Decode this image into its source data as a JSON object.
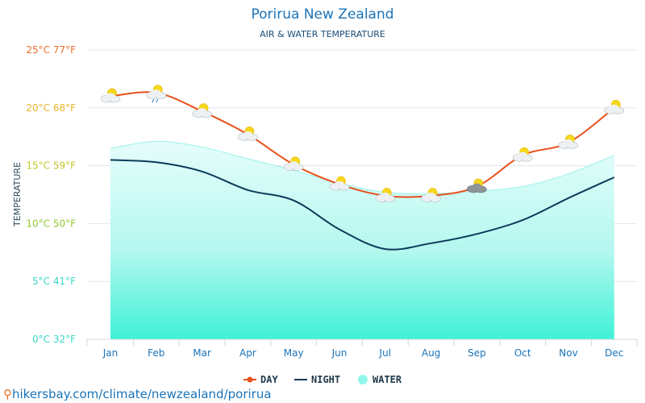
{
  "chart_data": {
    "type": "line",
    "title": "Porirua New Zealand",
    "subtitle": "AIR & WATER TEMPERATURE",
    "ylabel": "TEMPERATURE",
    "ylim": [
      0,
      25
    ],
    "yticks": [
      {
        "value": 0,
        "label": "0°C 32°F",
        "color": "#3cd6c9"
      },
      {
        "value": 5,
        "label": "5°C 41°F",
        "color": "#3cd6c9"
      },
      {
        "value": 10,
        "label": "10°C 50°F",
        "color": "#8fca33"
      },
      {
        "value": 15,
        "label": "15°C 59°F",
        "color": "#c6c42a"
      },
      {
        "value": 20,
        "label": "20°C 68°F",
        "color": "#e8b42a"
      },
      {
        "value": 25,
        "label": "25°C 77°F",
        "color": "#e8702a"
      }
    ],
    "categories": [
      "Jan",
      "Feb",
      "Mar",
      "Apr",
      "May",
      "Jun",
      "Jul",
      "Aug",
      "Sep",
      "Oct",
      "Nov",
      "Dec"
    ],
    "series": [
      {
        "name": "DAY",
        "color": "#e8501a",
        "values": [
          21.0,
          21.3,
          19.7,
          17.7,
          15.1,
          13.4,
          12.4,
          12.4,
          13.2,
          15.9,
          17.0,
          20.0
        ]
      },
      {
        "name": "NIGHT",
        "color": "#0d3a5a",
        "values": [
          15.5,
          15.3,
          14.5,
          12.9,
          12.0,
          9.5,
          7.8,
          8.3,
          9.1,
          10.3,
          12.2,
          14.0
        ]
      },
      {
        "name": "WATER",
        "color": "#7af7e6",
        "values": [
          16.5,
          17.1,
          16.6,
          15.6,
          14.6,
          13.5,
          12.7,
          12.6,
          12.8,
          13.2,
          14.3,
          15.9
        ]
      }
    ],
    "weather_icons": [
      "partly-cloudy-icon",
      "rain-cloud-sun-icon",
      "partly-cloudy-icon",
      "partly-cloudy-icon",
      "partly-cloudy-icon",
      "partly-cloudy-icon",
      "partly-cloudy-icon",
      "partly-cloudy-icon",
      "dark-cloud-sun-icon",
      "partly-cloudy-icon",
      "partly-cloudy-icon",
      "partly-cloudy-icon"
    ],
    "legend": {
      "placement": "bottom-center"
    },
    "grid": true
  },
  "source": {
    "text": "hikersbay.com/climate/newzealand/porirua"
  }
}
